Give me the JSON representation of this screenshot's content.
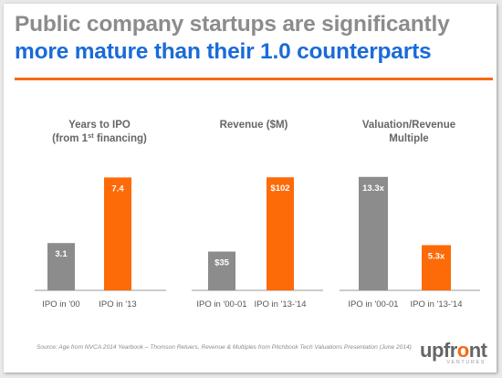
{
  "slide": {
    "title_line1": "Public company startups are significantly",
    "title_line2": "more mature than their 1.0 counterparts",
    "source": "Source: Age from NVCA 2014 Yearbook – Thomson Retuers, Revenue & Multiples from Pitchbook Tech Valuations Presentation (June 2014)",
    "logo_text_a": "upfr",
    "logo_text_b": "o",
    "logo_text_c": "nt",
    "logo_sub": "VENTURES"
  },
  "colors": {
    "gray": "#8c8c8c",
    "orange": "#fd6a08",
    "title_blue": "#1a6bd8",
    "rule": "#f56a12"
  },
  "chart_data": [
    {
      "type": "bar",
      "title_lines": [
        "Years to IPO",
        "(from 1"
      ],
      "title_sup": "st",
      "title_tail": " financing)",
      "categories": [
        "IPO in '00",
        "IPO in '13"
      ],
      "values": [
        3.1,
        7.4
      ],
      "labels": [
        "3.1",
        "7.4"
      ],
      "ylim": [
        0,
        8.5
      ]
    },
    {
      "type": "bar",
      "title_lines": [
        "Revenue ($M)"
      ],
      "categories": [
        "IPO in '00-01",
        "IPO in '13-'14"
      ],
      "values": [
        35,
        102
      ],
      "labels": [
        "$35",
        "$102"
      ],
      "ylim": [
        0,
        117
      ]
    },
    {
      "type": "bar",
      "title_lines": [
        "Valuation/Revenue",
        "Multiple"
      ],
      "categories": [
        "IPO in '00-01",
        "IPO in '13-'14"
      ],
      "values": [
        13.3,
        5.3
      ],
      "labels": [
        "13.3x",
        "5.3x"
      ],
      "ylim": [
        0,
        15.2
      ]
    }
  ]
}
